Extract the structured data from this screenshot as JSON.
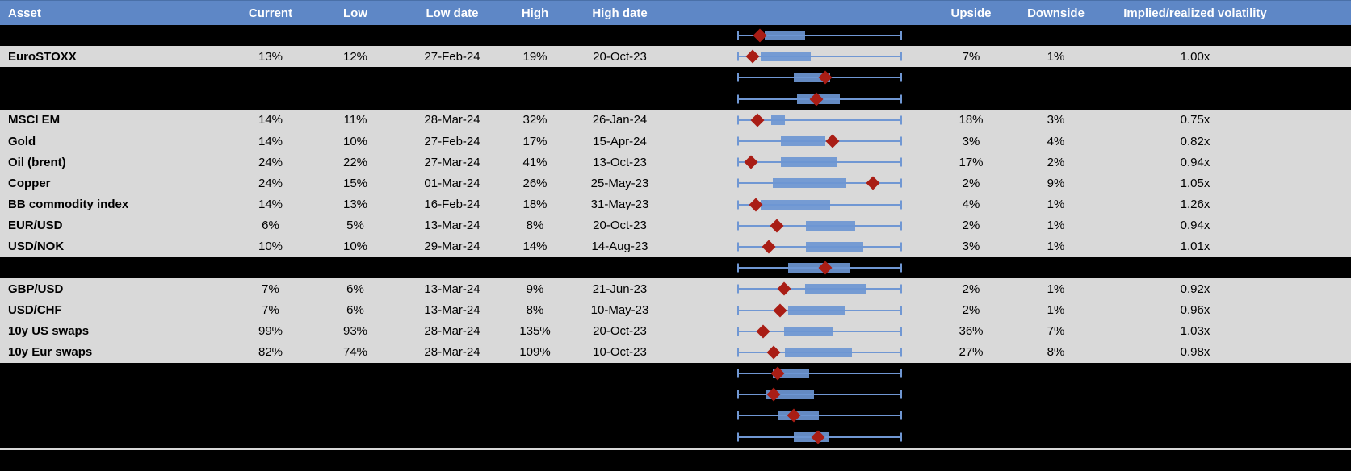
{
  "colors": {
    "header_blue": "#5e87c6",
    "row_gray": "#d9d9d9",
    "hidden_black": "#000000",
    "box_blue": "#6d96d3",
    "whisker_blue": "#7097d3",
    "marker_red": "#a91d15"
  },
  "table": {
    "columns": [
      {
        "key": "asset",
        "label": "Asset"
      },
      {
        "key": "current",
        "label": "Current"
      },
      {
        "key": "low",
        "label": "Low"
      },
      {
        "key": "low_date",
        "label": "Low date"
      },
      {
        "key": "high",
        "label": "High"
      },
      {
        "key": "high_date",
        "label": "High date"
      },
      {
        "key": "plot",
        "label": ""
      },
      {
        "key": "upside",
        "label": "Upside"
      },
      {
        "key": "downside",
        "label": "Downside"
      },
      {
        "key": "implied",
        "label": "Implied/realized volatility"
      }
    ],
    "rows": [
      {
        "kind": "hidden",
        "plot": {
          "box_start_pct": 16.5,
          "box_end_pct": 41.0,
          "marker_pct": 13.5
        }
      },
      {
        "kind": "data",
        "asset": "EuroSTOXX",
        "current": "13%",
        "low": "12%",
        "low_date": "27-Feb-24",
        "high": "19%",
        "high_date": "20-Oct-23",
        "upside": "7%",
        "downside": "1%",
        "implied": "1.00x",
        "plot": {
          "box_start_pct": 14.1,
          "box_end_pct": 44.7,
          "marker_pct": 9.4
        }
      },
      {
        "kind": "hidden",
        "plot": {
          "box_start_pct": 34.5,
          "box_end_pct": 56.5,
          "marker_pct": 53.3
        }
      },
      {
        "kind": "hidden",
        "plot": {
          "box_start_pct": 36.1,
          "box_end_pct": 62.3,
          "marker_pct": 47.9
        }
      },
      {
        "kind": "data",
        "asset": "MSCI EM",
        "current": "14%",
        "low": "11%",
        "low_date": "28-Mar-24",
        "high": "32%",
        "high_date": "26-Jan-24",
        "upside": "18%",
        "downside": "3%",
        "implied": "0.75x",
        "plot": {
          "box_start_pct": 20.6,
          "box_end_pct": 28.9,
          "marker_pct": 12.1
        }
      },
      {
        "kind": "data",
        "asset": "Gold",
        "current": "14%",
        "low": "10%",
        "low_date": "27-Feb-24",
        "high": "17%",
        "high_date": "15-Apr-24",
        "upside": "3%",
        "downside": "4%",
        "implied": "0.82x",
        "plot": {
          "box_start_pct": 26.3,
          "box_end_pct": 53.3,
          "marker_pct": 57.8
        }
      },
      {
        "kind": "data",
        "asset": "Oil (brent)",
        "current": "24%",
        "low": "22%",
        "low_date": "27-Mar-24",
        "high": "41%",
        "high_date": "13-Oct-23",
        "upside": "17%",
        "downside": "2%",
        "implied": "0.94x",
        "plot": {
          "box_start_pct": 26.3,
          "box_end_pct": 60.6,
          "marker_pct": 8.3
        }
      },
      {
        "kind": "data",
        "asset": "Copper",
        "current": "24%",
        "low": "15%",
        "low_date": "01-Mar-24",
        "high": "26%",
        "high_date": "25-May-23",
        "upside": "2%",
        "downside": "9%",
        "implied": "1.05x",
        "plot": {
          "box_start_pct": 21.7,
          "box_end_pct": 66.0,
          "marker_pct": 82.4
        }
      },
      {
        "kind": "data",
        "asset": "BB commodity index",
        "current": "14%",
        "low": "13%",
        "low_date": "16-Feb-24",
        "high": "18%",
        "high_date": "31-May-23",
        "upside": "4%",
        "downside": "1%",
        "implied": "1.26x",
        "plot": {
          "box_start_pct": 14.1,
          "box_end_pct": 56.5,
          "marker_pct": 11.3
        }
      },
      {
        "kind": "data",
        "asset": "EUR/USD",
        "current": "6%",
        "low": "5%",
        "low_date": "13-Mar-24",
        "high": "8%",
        "high_date": "20-Oct-23",
        "upside": "2%",
        "downside": "1%",
        "implied": "0.94x",
        "plot": {
          "box_start_pct": 41.5,
          "box_end_pct": 71.6,
          "marker_pct": 24.0
        }
      },
      {
        "kind": "data",
        "asset": "USD/NOK",
        "current": "10%",
        "low": "10%",
        "low_date": "29-Mar-24",
        "high": "14%",
        "high_date": "14-Aug-23",
        "upside": "3%",
        "downside": "1%",
        "implied": "1.01x",
        "plot": {
          "box_start_pct": 41.5,
          "box_end_pct": 76.6,
          "marker_pct": 19.0
        }
      },
      {
        "kind": "hidden",
        "plot": {
          "box_start_pct": 30.9,
          "box_end_pct": 68.0,
          "marker_pct": 53.3
        }
      },
      {
        "kind": "data",
        "asset": "GBP/USD",
        "current": "7%",
        "low": "6%",
        "low_date": "13-Mar-24",
        "high": "9%",
        "high_date": "21-Jun-23",
        "upside": "2%",
        "downside": "1%",
        "implied": "0.92x",
        "plot": {
          "box_start_pct": 41.0,
          "box_end_pct": 78.6,
          "marker_pct": 28.3
        }
      },
      {
        "kind": "data",
        "asset": "USD/CHF",
        "current": "7%",
        "low": "6%",
        "low_date": "13-Mar-24",
        "high": "8%",
        "high_date": "10-May-23",
        "upside": "2%",
        "downside": "1%",
        "implied": "0.96x",
        "plot": {
          "box_start_pct": 30.9,
          "box_end_pct": 65.2,
          "marker_pct": 26.0
        }
      },
      {
        "kind": "data",
        "asset": "10y US swaps",
        "current": "99%",
        "low": "93%",
        "low_date": "28-Mar-24",
        "high": "135%",
        "high_date": "20-Oct-23",
        "upside": "36%",
        "downside": "7%",
        "implied": "1.03x",
        "plot": {
          "box_start_pct": 28.4,
          "box_end_pct": 58.5,
          "marker_pct": 15.7
        }
      },
      {
        "kind": "data",
        "asset": "10y Eur swaps",
        "current": "82%",
        "low": "74%",
        "low_date": "28-Mar-24",
        "high": "109%",
        "high_date": "10-Oct-23",
        "upside": "27%",
        "downside": "8%",
        "implied": "0.98x",
        "plot": {
          "box_start_pct": 28.8,
          "box_end_pct": 69.6,
          "marker_pct": 22.2
        }
      },
      {
        "kind": "hidden",
        "plot": {
          "box_start_pct": 21.4,
          "box_end_pct": 43.5,
          "marker_pct": 24.4
        }
      },
      {
        "kind": "hidden",
        "plot": {
          "box_start_pct": 17.8,
          "box_end_pct": 46.4,
          "marker_pct": 21.9
        }
      },
      {
        "kind": "hidden",
        "plot": {
          "box_start_pct": 24.4,
          "box_end_pct": 49.7,
          "marker_pct": 34.5
        }
      },
      {
        "kind": "hidden",
        "plot": {
          "box_start_pct": 34.2,
          "box_end_pct": 55.4,
          "marker_pct": 48.9
        }
      }
    ]
  }
}
